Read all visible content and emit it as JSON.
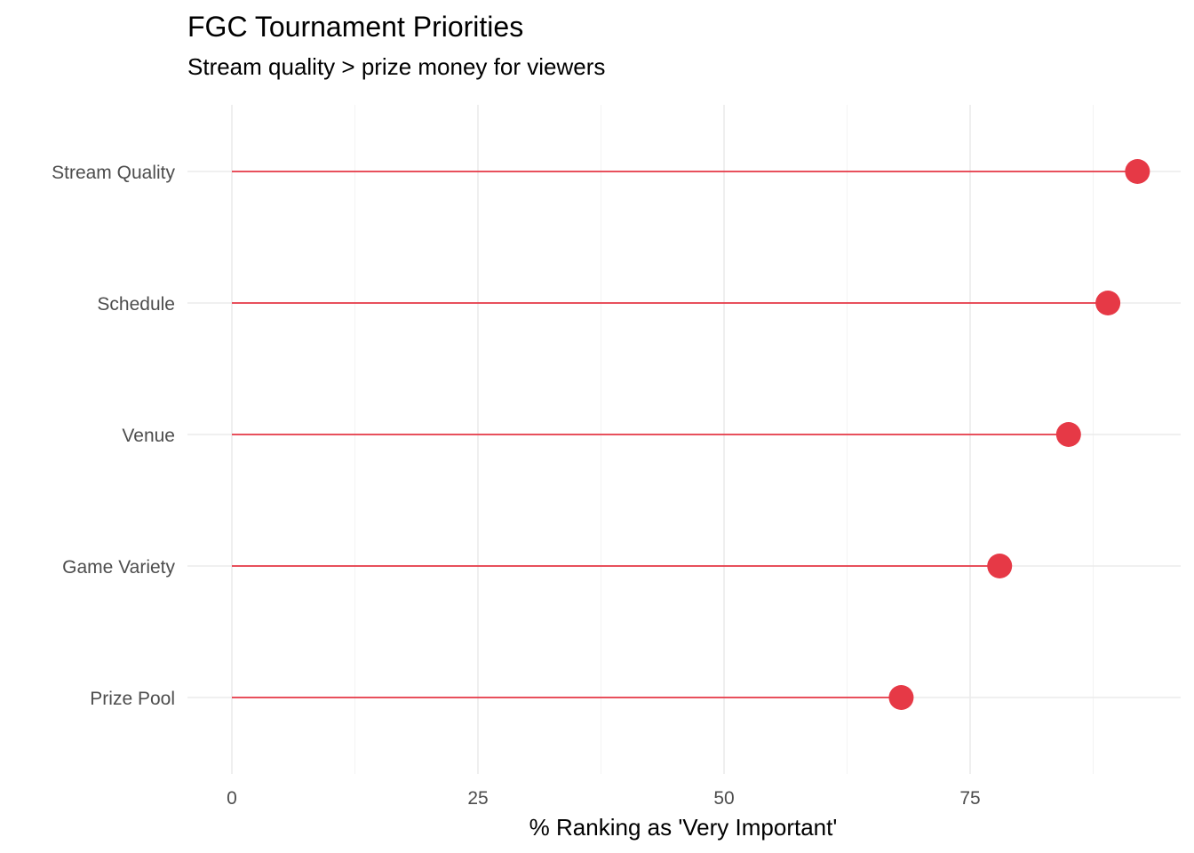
{
  "chart_data": {
    "type": "lollipop",
    "title": "FGC Tournament Priorities",
    "subtitle": "Stream quality > prize money for viewers",
    "xlabel": "% Ranking as 'Very Important'",
    "ylabel": "",
    "xlim": [
      0,
      100
    ],
    "x_ticks": [
      0,
      25,
      50,
      75
    ],
    "x_tick_labels": [
      "0",
      "25",
      "50",
      "75"
    ],
    "categories": [
      "Stream Quality",
      "Schedule",
      "Venue",
      "Game Variety",
      "Prize Pool"
    ],
    "values": [
      92,
      89,
      85,
      78,
      68
    ],
    "grid": true,
    "legend": "none",
    "color": "#e63946"
  }
}
